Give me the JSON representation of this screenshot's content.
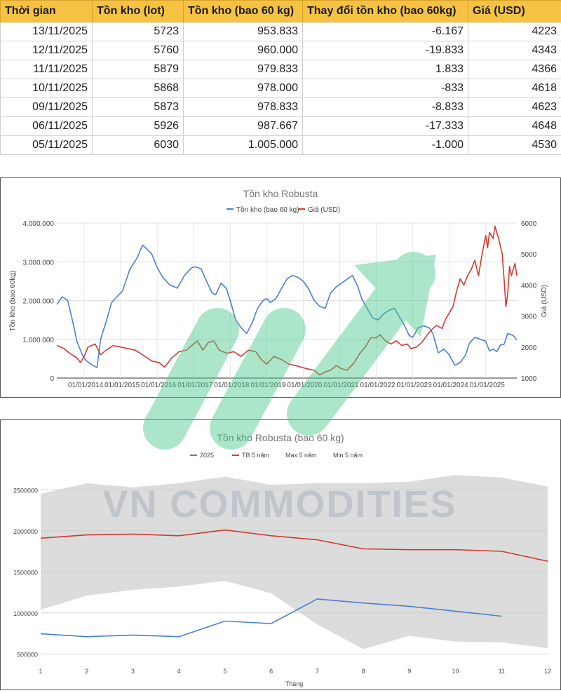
{
  "table": {
    "headers": [
      "Thời gian",
      "Tồn kho (lot)",
      "Tồn kho (bao 60 kg)",
      "Thay đổi tồn kho (bao 60kg)",
      "Giá (USD)"
    ],
    "rows": [
      [
        "13/11/2025",
        "5723",
        "953.833",
        "-6.167",
        "4223"
      ],
      [
        "12/11/2025",
        "5760",
        "960.000",
        "-19.833",
        "4343"
      ],
      [
        "11/11/2025",
        "5879",
        "979.833",
        "1.833",
        "4366"
      ],
      [
        "10/11/2025",
        "5868",
        "978.000",
        "-833",
        "4618"
      ],
      [
        "09/11/2025",
        "5873",
        "978.833",
        "-8.833",
        "4623"
      ],
      [
        "06/11/2025",
        "5926",
        "987.667",
        "-17.333",
        "4648"
      ],
      [
        "05/11/2025",
        "6030",
        "1.005.000",
        "-1.000",
        "4530"
      ]
    ]
  },
  "watermark": {
    "text": "VN COMMODITIES",
    "color": "#aab0bd",
    "arrow_color": "#48c98c"
  },
  "chart_data": [
    {
      "type": "line",
      "title": "Tồn kho Robusta",
      "ylabel": "Tồn kho (bao 60kg)",
      "y2label": "Giá (USD)",
      "ylim": [
        0,
        4000000
      ],
      "y2lim": [
        1000,
        6000
      ],
      "yticks": [
        "0",
        "1.000.000",
        "2.000.000",
        "3.000.000",
        "4.000.000"
      ],
      "y2ticks": [
        "1000",
        "2000",
        "3000",
        "4000",
        "5000",
        "6000"
      ],
      "xticks": [
        "01/01/2014",
        "01/01/2015",
        "01/01/2016",
        "01/01/2017",
        "01/01/2018",
        "01/01/2019",
        "01/01/2020",
        "01/01/2021",
        "01/01/2022",
        "01/01/2023",
        "01/01/2024",
        "01/01/2025"
      ],
      "xlim": [
        2013.25,
        2025.85
      ],
      "grid": true,
      "legend": "top",
      "series": [
        {
          "name": "Tồn kho (bao 60 kg)",
          "axis": "left",
          "color": "#4a7fd4",
          "x": [
            2013.25,
            2013.4,
            2013.55,
            2013.7,
            2013.8,
            2013.95,
            2014.05,
            2014.2,
            2014.35,
            2014.45,
            2014.6,
            2014.75,
            2014.9,
            2015.05,
            2015.25,
            2015.45,
            2015.6,
            2015.75,
            2015.85,
            2016.0,
            2016.15,
            2016.35,
            2016.55,
            2016.75,
            2016.95,
            2017.05,
            2017.2,
            2017.35,
            2017.5,
            2017.6,
            2017.75,
            2017.9,
            2018.0,
            2018.15,
            2018.3,
            2018.45,
            2018.6,
            2018.75,
            2018.9,
            2019.0,
            2019.1,
            2019.25,
            2019.4,
            2019.55,
            2019.7,
            2019.85,
            2020.0,
            2020.15,
            2020.3,
            2020.45,
            2020.6,
            2020.75,
            2020.9,
            2021.05,
            2021.2,
            2021.35,
            2021.5,
            2021.6,
            2021.75,
            2021.9,
            2022.05,
            2022.2,
            2022.35,
            2022.5,
            2022.65,
            2022.75,
            2022.9,
            2023.0,
            2023.15,
            2023.3,
            2023.45,
            2023.55,
            2023.7,
            2023.85,
            2024.0,
            2024.15,
            2024.3,
            2024.45,
            2024.55,
            2024.7,
            2024.85,
            2025.0,
            2025.1,
            2025.2,
            2025.3,
            2025.4,
            2025.5,
            2025.6,
            2025.75,
            2025.85
          ],
          "values": [
            1900000,
            2100000,
            2000000,
            1400000,
            950000,
            600000,
            450000,
            350000,
            270000,
            1000000,
            1450000,
            1950000,
            2100000,
            2250000,
            2800000,
            3100000,
            3430000,
            3300000,
            3200000,
            2850000,
            2600000,
            2400000,
            2320000,
            2650000,
            2850000,
            2870000,
            2820000,
            2500000,
            2200000,
            2150000,
            2450000,
            2300000,
            2000000,
            1500000,
            1300000,
            1150000,
            1420000,
            1800000,
            2000000,
            2050000,
            1950000,
            2050000,
            2300000,
            2550000,
            2650000,
            2600000,
            2500000,
            2300000,
            2000000,
            1850000,
            1800000,
            2200000,
            2350000,
            2450000,
            2550000,
            2650000,
            2350000,
            2050000,
            1800000,
            1550000,
            1500000,
            1650000,
            1750000,
            1800000,
            1550000,
            1400000,
            1100000,
            1050000,
            1300000,
            1350000,
            1300000,
            1150000,
            650000,
            750000,
            600000,
            330000,
            400000,
            600000,
            900000,
            1050000,
            1000000,
            950000,
            700000,
            750000,
            680000,
            850000,
            870000,
            1150000,
            1100000,
            980000
          ]
        },
        {
          "name": "Giá (USD)",
          "axis": "right",
          "color": "#d33a32",
          "x": [
            2013.25,
            2013.45,
            2013.6,
            2013.8,
            2013.9,
            2014.0,
            2014.1,
            2014.3,
            2014.45,
            2014.6,
            2014.8,
            2015.0,
            2015.2,
            2015.4,
            2015.6,
            2015.85,
            2016.05,
            2016.2,
            2016.4,
            2016.6,
            2016.8,
            2017.0,
            2017.1,
            2017.25,
            2017.4,
            2017.55,
            2017.7,
            2017.9,
            2018.1,
            2018.3,
            2018.5,
            2018.7,
            2018.85,
            2019.0,
            2019.2,
            2019.4,
            2019.6,
            2019.8,
            2019.95,
            2020.1,
            2020.3,
            2020.45,
            2020.6,
            2020.75,
            2020.9,
            2021.05,
            2021.2,
            2021.4,
            2021.55,
            2021.7,
            2021.85,
            2022.0,
            2022.1,
            2022.25,
            2022.4,
            2022.55,
            2022.7,
            2022.85,
            2022.95,
            2023.1,
            2023.25,
            2023.4,
            2023.55,
            2023.65,
            2023.8,
            2023.9,
            2024.0,
            2024.1,
            2024.2,
            2024.3,
            2024.4,
            2024.5,
            2024.6,
            2024.7,
            2024.8,
            2024.9,
            2025.0,
            2025.05,
            2025.1,
            2025.2,
            2025.25,
            2025.35,
            2025.45,
            2025.5,
            2025.55,
            2025.6,
            2025.65,
            2025.7,
            2025.8,
            2025.85
          ],
          "values": [
            2050,
            1950,
            1800,
            1650,
            1500,
            1700,
            2000,
            2100,
            1750,
            1900,
            2050,
            2000,
            1950,
            1900,
            1750,
            1550,
            1500,
            1350,
            1650,
            1850,
            1900,
            2100,
            2200,
            1900,
            2150,
            2200,
            1900,
            1800,
            1850,
            1700,
            1900,
            1850,
            1600,
            1450,
            1700,
            1600,
            1450,
            1400,
            1350,
            1300,
            1250,
            1100,
            1200,
            1250,
            1400,
            1300,
            1250,
            1500,
            1800,
            2000,
            2300,
            2300,
            2400,
            2200,
            2100,
            2200,
            2050,
            2100,
            1950,
            2000,
            2150,
            2400,
            2600,
            2700,
            2600,
            2900,
            3100,
            3300,
            3800,
            4200,
            4000,
            4300,
            4500,
            4800,
            4300,
            5000,
            5600,
            5200,
            5700,
            5500,
            5900,
            5500,
            5000,
            4200,
            3300,
            3700,
            4600,
            4300,
            4700,
            4300
          ]
        }
      ]
    },
    {
      "type": "line",
      "title": "Tồn kho Robusta (bao 60 kg)",
      "xlabel": "Tháng",
      "ylabel": "",
      "categories": [
        "1",
        "2",
        "3",
        "4",
        "5",
        "6",
        "7",
        "8",
        "9",
        "10",
        "11",
        "12"
      ],
      "ylim": [
        400000,
        2750000
      ],
      "yticks": [
        "500000",
        "1000000",
        "1500000",
        "2000000",
        "2500000"
      ],
      "grid": true,
      "legend": "top",
      "series": [
        {
          "name": "2025",
          "color": "#4a7fd4",
          "values": [
            745000,
            710000,
            730000,
            710000,
            900000,
            870000,
            1170000,
            1120000,
            1080000,
            1020000,
            960000,
            null
          ]
        },
        {
          "name": "TB 5 năm",
          "color": "#d33a32",
          "values": [
            1910000,
            1950000,
            1960000,
            1940000,
            2010000,
            1940000,
            1890000,
            1780000,
            1770000,
            1770000,
            1750000,
            1630000
          ]
        },
        {
          "name": "Max 5 năm",
          "color": "#d9d9d9",
          "values": [
            2450000,
            2580000,
            2530000,
            2580000,
            2660000,
            2560000,
            2580000,
            2580000,
            2600000,
            2680000,
            2650000,
            2540000
          ]
        },
        {
          "name": "Min 5 năm",
          "color": "#d9d9d9",
          "values": [
            1040000,
            1210000,
            1280000,
            1320000,
            1390000,
            1240000,
            860000,
            560000,
            720000,
            650000,
            640000,
            570000
          ]
        }
      ]
    }
  ]
}
